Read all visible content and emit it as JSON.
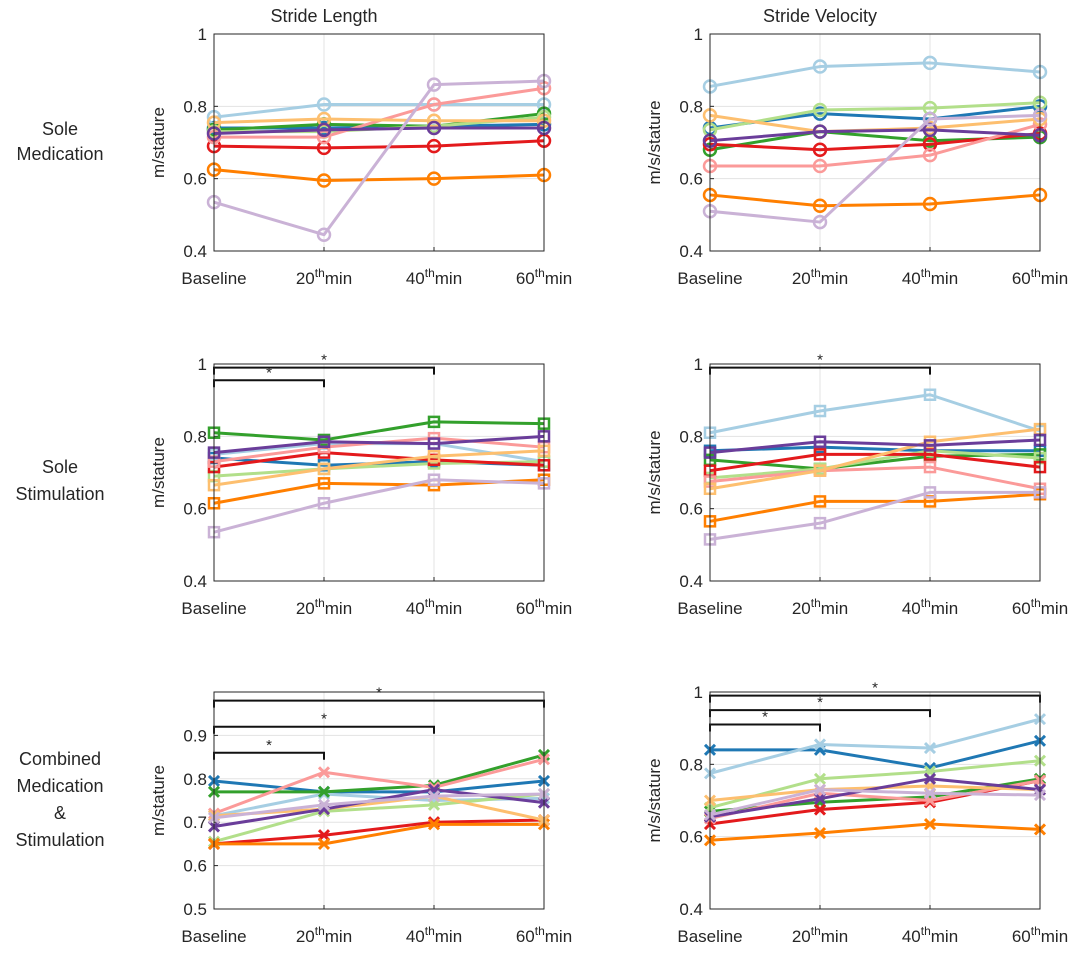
{
  "figure": {
    "column_titles": [
      "Stride Length",
      "Stride Velocity"
    ],
    "row_labels": [
      [
        "Sole",
        "Medication"
      ],
      [
        "Sole",
        "Stimulation"
      ],
      [
        "Combined",
        "Medication",
        "&",
        "Stimulation"
      ]
    ],
    "x_tick_labels": [
      {
        "text": "Baseline"
      },
      {
        "base": "20",
        "sup": "th",
        "rest": "min"
      },
      {
        "base": "40",
        "sup": "th",
        "rest": "min"
      },
      {
        "base": "60",
        "sup": "th",
        "rest": "min"
      }
    ],
    "significance_marker": "*"
  },
  "colors": {
    "dark_blue": "#1f78b4",
    "light_blue": "#a6cee3",
    "dark_green": "#33a02c",
    "light_green": "#b2df8a",
    "red": "#e31a1c",
    "pink": "#fb9a99",
    "orange": "#ff7f00",
    "light_orange": "#fdbf6f",
    "purple": "#6a3d9a",
    "lavender": "#cab2d6"
  },
  "chart_data": [
    {
      "type": "line",
      "row": 0,
      "col": 0,
      "marker": "circle",
      "ylabel": "m/stature",
      "ylim": [
        0.4,
        1
      ],
      "yticks": [
        "0.4",
        "0.6",
        "0.8",
        "1"
      ],
      "categories": [
        "Baseline",
        "20thmin",
        "40thmin",
        "60thmin"
      ],
      "brackets": [],
      "series": [
        {
          "color": "dark_blue",
          "values": [
            0.74,
            0.74,
            0.745,
            0.75
          ]
        },
        {
          "color": "light_blue",
          "values": [
            0.77,
            0.805,
            0.805,
            0.805
          ]
        },
        {
          "color": "dark_green",
          "values": [
            0.735,
            0.75,
            0.745,
            0.78
          ]
        },
        {
          "color": "light_green",
          "values": [
            0.73,
            0.73,
            0.745,
            0.77
          ]
        },
        {
          "color": "red",
          "values": [
            0.69,
            0.685,
            0.69,
            0.705
          ]
        },
        {
          "color": "pink",
          "values": [
            0.715,
            0.715,
            0.805,
            0.85
          ]
        },
        {
          "color": "orange",
          "values": [
            0.625,
            0.595,
            0.6,
            0.61
          ]
        },
        {
          "color": "light_orange",
          "values": [
            0.755,
            0.765,
            0.76,
            0.76
          ]
        },
        {
          "color": "purple",
          "values": [
            0.725,
            0.735,
            0.74,
            0.74
          ]
        },
        {
          "color": "lavender",
          "values": [
            0.535,
            0.445,
            0.86,
            0.87
          ]
        }
      ]
    },
    {
      "type": "line",
      "row": 0,
      "col": 1,
      "marker": "circle",
      "ylabel": "m/s/stature",
      "ylim": [
        0.4,
        1
      ],
      "yticks": [
        "0.4",
        "0.6",
        "0.8",
        "1"
      ],
      "categories": [
        "Baseline",
        "20thmin",
        "40thmin",
        "60thmin"
      ],
      "brackets": [],
      "series": [
        {
          "color": "dark_blue",
          "values": [
            0.74,
            0.78,
            0.765,
            0.8
          ]
        },
        {
          "color": "light_blue",
          "values": [
            0.855,
            0.91,
            0.92,
            0.895
          ]
        },
        {
          "color": "dark_green",
          "values": [
            0.68,
            0.73,
            0.705,
            0.715
          ]
        },
        {
          "color": "light_green",
          "values": [
            0.735,
            0.79,
            0.795,
            0.81
          ]
        },
        {
          "color": "red",
          "values": [
            0.695,
            0.68,
            0.695,
            0.725
          ]
        },
        {
          "color": "pink",
          "values": [
            0.635,
            0.635,
            0.665,
            0.75
          ]
        },
        {
          "color": "orange",
          "values": [
            0.555,
            0.525,
            0.53,
            0.555
          ]
        },
        {
          "color": "light_orange",
          "values": [
            0.775,
            0.73,
            0.74,
            0.765
          ]
        },
        {
          "color": "purple",
          "values": [
            0.705,
            0.73,
            0.735,
            0.72
          ]
        },
        {
          "color": "lavender",
          "values": [
            0.51,
            0.48,
            0.765,
            0.775
          ]
        }
      ]
    },
    {
      "type": "line",
      "row": 1,
      "col": 0,
      "marker": "square",
      "ylabel": "m/stature",
      "ylim": [
        0.4,
        1
      ],
      "yticks": [
        "0.4",
        "0.6",
        "0.8",
        "1"
      ],
      "categories": [
        "Baseline",
        "20thmin",
        "40thmin",
        "60thmin"
      ],
      "brackets": [
        {
          "from": 0,
          "to": 1,
          "level": 0.955,
          "label": "*"
        },
        {
          "from": 0,
          "to": 2,
          "level": 0.99,
          "label": "*"
        }
      ],
      "series": [
        {
          "color": "dark_blue",
          "values": [
            0.74,
            0.72,
            0.73,
            0.72
          ]
        },
        {
          "color": "light_blue",
          "values": [
            0.75,
            0.78,
            0.78,
            0.73
          ]
        },
        {
          "color": "dark_green",
          "values": [
            0.81,
            0.79,
            0.84,
            0.835
          ]
        },
        {
          "color": "light_green",
          "values": [
            0.69,
            0.71,
            0.725,
            0.73
          ]
        },
        {
          "color": "red",
          "values": [
            0.715,
            0.755,
            0.735,
            0.72
          ]
        },
        {
          "color": "pink",
          "values": [
            0.73,
            0.77,
            0.795,
            0.77
          ]
        },
        {
          "color": "orange",
          "values": [
            0.615,
            0.67,
            0.665,
            0.68
          ]
        },
        {
          "color": "light_orange",
          "values": [
            0.665,
            0.71,
            0.745,
            0.76
          ]
        },
        {
          "color": "purple",
          "values": [
            0.755,
            0.785,
            0.78,
            0.8
          ]
        },
        {
          "color": "lavender",
          "values": [
            0.535,
            0.615,
            0.68,
            0.67
          ]
        }
      ]
    },
    {
      "type": "line",
      "row": 1,
      "col": 1,
      "marker": "square",
      "ylabel": "m/s/stature",
      "ylim": [
        0.4,
        1
      ],
      "yticks": [
        "0.4",
        "0.6",
        "0.8",
        "1"
      ],
      "categories": [
        "Baseline",
        "20thmin",
        "40thmin",
        "60thmin"
      ],
      "brackets": [
        {
          "from": 0,
          "to": 2,
          "level": 0.99,
          "label": "*"
        }
      ],
      "series": [
        {
          "color": "dark_blue",
          "values": [
            0.76,
            0.77,
            0.76,
            0.76
          ]
        },
        {
          "color": "light_blue",
          "values": [
            0.81,
            0.87,
            0.915,
            0.815
          ]
        },
        {
          "color": "dark_green",
          "values": [
            0.735,
            0.71,
            0.745,
            0.75
          ]
        },
        {
          "color": "light_green",
          "values": [
            0.685,
            0.71,
            0.76,
            0.74
          ]
        },
        {
          "color": "red",
          "values": [
            0.705,
            0.75,
            0.75,
            0.715
          ]
        },
        {
          "color": "pink",
          "values": [
            0.675,
            0.705,
            0.715,
            0.655
          ]
        },
        {
          "color": "orange",
          "values": [
            0.565,
            0.62,
            0.62,
            0.64
          ]
        },
        {
          "color": "light_orange",
          "values": [
            0.655,
            0.705,
            0.785,
            0.82
          ]
        },
        {
          "color": "purple",
          "values": [
            0.755,
            0.785,
            0.775,
            0.79
          ]
        },
        {
          "color": "lavender",
          "values": [
            0.515,
            0.56,
            0.645,
            0.645
          ]
        }
      ]
    },
    {
      "type": "line",
      "row": 2,
      "col": 0,
      "marker": "x",
      "ylabel": "m/stature",
      "ylim": [
        0.5,
        1
      ],
      "yticks": [
        "0.5",
        "0.6",
        "0.7",
        "0.8",
        "0.9"
      ],
      "categories": [
        "Baseline",
        "20thmin",
        "40thmin",
        "60thmin"
      ],
      "brackets": [
        {
          "from": 0,
          "to": 1,
          "level": 0.86,
          "label": "*"
        },
        {
          "from": 0,
          "to": 2,
          "level": 0.92,
          "label": "*"
        },
        {
          "from": 0,
          "to": 3,
          "level": 0.98,
          "label": "*"
        }
      ],
      "series": [
        {
          "color": "dark_blue",
          "values": [
            0.795,
            0.77,
            0.77,
            0.795
          ]
        },
        {
          "color": "light_blue",
          "values": [
            0.715,
            0.765,
            0.75,
            0.755
          ]
        },
        {
          "color": "dark_green",
          "values": [
            0.77,
            0.77,
            0.785,
            0.855
          ]
        },
        {
          "color": "light_green",
          "values": [
            0.655,
            0.725,
            0.74,
            0.765
          ]
        },
        {
          "color": "red",
          "values": [
            0.65,
            0.67,
            0.7,
            0.705
          ]
        },
        {
          "color": "pink",
          "values": [
            0.72,
            0.815,
            0.78,
            0.845
          ]
        },
        {
          "color": "orange",
          "values": [
            0.65,
            0.65,
            0.695,
            0.695
          ]
        },
        {
          "color": "light_orange",
          "values": [
            0.715,
            0.73,
            0.76,
            0.705
          ]
        },
        {
          "color": "purple",
          "values": [
            0.69,
            0.73,
            0.775,
            0.745
          ]
        },
        {
          "color": "lavender",
          "values": [
            0.71,
            0.74,
            0.76,
            0.765
          ]
        }
      ]
    },
    {
      "type": "line",
      "row": 2,
      "col": 1,
      "marker": "x",
      "ylabel": "m/s/stature",
      "ylim": [
        0.4,
        1
      ],
      "yticks": [
        "0.4",
        "0.6",
        "0.8",
        "1"
      ],
      "categories": [
        "Baseline",
        "20thmin",
        "40thmin",
        "60thmin"
      ],
      "brackets": [
        {
          "from": 0,
          "to": 1,
          "level": 0.91,
          "label": "*"
        },
        {
          "from": 0,
          "to": 2,
          "level": 0.95,
          "label": "*"
        },
        {
          "from": 0,
          "to": 3,
          "level": 0.99,
          "label": "*"
        }
      ],
      "series": [
        {
          "color": "dark_blue",
          "values": [
            0.84,
            0.84,
            0.79,
            0.865
          ]
        },
        {
          "color": "light_blue",
          "values": [
            0.775,
            0.855,
            0.845,
            0.925
          ]
        },
        {
          "color": "dark_green",
          "values": [
            0.67,
            0.695,
            0.71,
            0.76
          ]
        },
        {
          "color": "light_green",
          "values": [
            0.68,
            0.76,
            0.78,
            0.81
          ]
        },
        {
          "color": "red",
          "values": [
            0.635,
            0.675,
            0.695,
            0.755
          ]
        },
        {
          "color": "pink",
          "values": [
            0.65,
            0.72,
            0.7,
            0.755
          ]
        },
        {
          "color": "orange",
          "values": [
            0.59,
            0.61,
            0.635,
            0.62
          ]
        },
        {
          "color": "light_orange",
          "values": [
            0.7,
            0.73,
            0.74,
            0.73
          ]
        },
        {
          "color": "purple",
          "values": [
            0.655,
            0.705,
            0.76,
            0.73
          ]
        },
        {
          "color": "lavender",
          "values": [
            0.66,
            0.73,
            0.72,
            0.715
          ]
        }
      ]
    }
  ]
}
